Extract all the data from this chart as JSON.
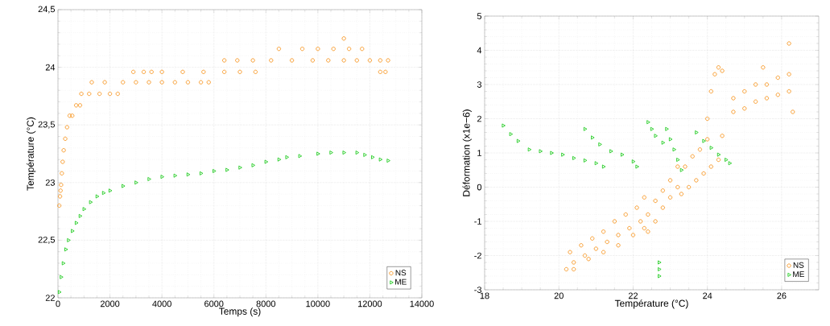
{
  "chart_data": [
    {
      "type": "scatter",
      "xlabel": "Temps (s)",
      "ylabel": "Température (°C)",
      "xlim": [
        0,
        14000
      ],
      "ylim": [
        22,
        24.5
      ],
      "xticks": [
        0,
        2000,
        4000,
        6000,
        8000,
        10000,
        12000,
        14000
      ],
      "yticks": [
        22,
        {
          "value": 22.5,
          "label": "22,5"
        },
        23,
        {
          "value": 23.5,
          "label": "23,5"
        },
        24,
        {
          "value": 24.5,
          "label": "24,5"
        }
      ],
      "grid": true,
      "legend": "bottom right",
      "series": [
        {
          "name": "NS",
          "color": "#f7941d",
          "marker": "circle",
          "x": [
            50,
            80,
            100,
            120,
            150,
            180,
            220,
            280,
            350,
            450,
            550,
            700,
            850,
            900,
            1200,
            1600,
            2000,
            2300,
            1300,
            1800,
            2500,
            3000,
            3500,
            4000,
            4500,
            5000,
            5500,
            5800,
            2900,
            3300,
            3600,
            4000,
            4800,
            5600,
            6400,
            7000,
            7600,
            6400,
            6900,
            7500,
            8200,
            9000,
            9800,
            10400,
            11000,
            11500,
            12000,
            12400,
            12700,
            8500,
            9400,
            10000,
            10600,
            11200,
            11700,
            11000,
            12400,
            12600
          ],
          "values": [
            22.8,
            22.88,
            22.93,
            22.98,
            23.08,
            23.18,
            23.28,
            23.38,
            23.48,
            23.58,
            23.58,
            23.67,
            23.67,
            23.77,
            23.77,
            23.77,
            23.77,
            23.77,
            23.87,
            23.87,
            23.87,
            23.87,
            23.87,
            23.87,
            23.87,
            23.87,
            23.87,
            23.87,
            23.96,
            23.96,
            23.96,
            23.96,
            23.96,
            23.96,
            23.96,
            23.96,
            23.96,
            24.06,
            24.06,
            24.06,
            24.06,
            24.06,
            24.06,
            24.06,
            24.06,
            24.06,
            24.06,
            24.06,
            24.06,
            24.16,
            24.16,
            24.16,
            24.16,
            24.16,
            24.16,
            24.25,
            23.96,
            23.96
          ]
        },
        {
          "name": "ME",
          "color": "#22cc22",
          "marker": "triangle",
          "x": [
            50,
            120,
            200,
            300,
            400,
            550,
            700,
            850,
            1000,
            1250,
            1500,
            1750,
            2000,
            2500,
            3000,
            3500,
            4000,
            4500,
            5000,
            5500,
            6000,
            6500,
            7000,
            7500,
            8000,
            8500,
            8800,
            9300,
            10000,
            10500,
            11000,
            11500,
            11800,
            12100,
            12400,
            12700
          ],
          "values": [
            22.05,
            22.18,
            22.3,
            22.42,
            22.5,
            22.58,
            22.65,
            22.71,
            22.77,
            22.83,
            22.88,
            22.91,
            22.93,
            22.97,
            23.0,
            23.03,
            23.05,
            23.06,
            23.07,
            23.08,
            23.1,
            23.11,
            23.13,
            23.15,
            23.18,
            23.2,
            23.22,
            23.23,
            23.25,
            23.26,
            23.26,
            23.26,
            23.24,
            23.22,
            23.2,
            23.19
          ]
        }
      ]
    },
    {
      "type": "scatter",
      "xlabel": "Température (°C)",
      "ylabel": "Déformation (x1e−6)",
      "xlim": [
        18,
        27
      ],
      "ylim": [
        -3,
        5
      ],
      "xticks": [
        18,
        20,
        22,
        24,
        26
      ],
      "yticks": [
        -3,
        -2,
        -1,
        0,
        1,
        2,
        3,
        4,
        5
      ],
      "grid": true,
      "legend": "bottom right",
      "series": [
        {
          "name": "NS",
          "color": "#f7941d",
          "marker": "circle",
          "x": [
            20.2,
            20.4,
            20.7,
            21.0,
            21.3,
            21.6,
            21.9,
            22.2,
            20.3,
            20.6,
            20.9,
            21.2,
            21.5,
            21.8,
            22.1,
            22.3,
            20.4,
            20.8,
            21.2,
            21.6,
            22.0,
            22.3,
            22.4,
            22.6,
            22.8,
            23.0,
            23.2,
            22.4,
            22.6,
            22.8,
            23.0,
            23.2,
            23.3,
            23.5,
            23.7,
            23.9,
            24.1,
            23.4,
            23.6,
            23.8,
            24.0,
            24.0,
            24.1,
            24.2,
            24.3,
            24.4,
            24.4,
            24.3,
            24.7,
            25.0,
            25.3,
            25.6,
            25.9,
            26.2,
            24.7,
            25.0,
            25.3,
            25.6,
            25.9,
            26.2,
            25.5,
            26.2,
            26.3
          ],
          "values": [
            -2.4,
            -2.2,
            -2.0,
            -1.8,
            -1.6,
            -1.4,
            -1.2,
            -1.0,
            -1.9,
            -1.7,
            -1.5,
            -1.3,
            -1.0,
            -0.8,
            -0.6,
            -0.3,
            -2.4,
            -2.1,
            -1.9,
            -1.7,
            -1.4,
            -1.2,
            -1.3,
            -1.0,
            -0.6,
            -0.3,
            0.0,
            -0.8,
            -0.4,
            -0.1,
            0.2,
            0.6,
            -0.2,
            0.0,
            0.2,
            0.4,
            0.6,
            0.6,
            0.9,
            1.1,
            1.4,
            2.0,
            2.8,
            3.3,
            3.5,
            3.4,
            1.5,
            0.8,
            2.2,
            2.3,
            2.5,
            2.6,
            2.7,
            2.8,
            2.6,
            2.8,
            3.0,
            3.0,
            3.2,
            3.3,
            3.5,
            4.2,
            2.2
          ]
        },
        {
          "name": "ME",
          "color": "#22cc22",
          "marker": "triangle",
          "x": [
            18.5,
            18.7,
            18.9,
            19.2,
            19.5,
            19.8,
            20.1,
            20.4,
            20.7,
            21.0,
            21.2,
            20.7,
            20.9,
            21.1,
            21.4,
            21.7,
            22.0,
            22.1,
            22.4,
            22.5,
            22.6,
            22.8,
            22.9,
            23.0,
            23.1,
            23.2,
            23.3,
            23.7,
            23.9,
            24.1,
            24.3,
            24.5,
            24.6,
            22.7,
            22.7,
            22.7
          ],
          "values": [
            1.8,
            1.55,
            1.35,
            1.1,
            1.05,
            1.0,
            0.95,
            0.85,
            0.78,
            0.7,
            0.6,
            1.7,
            1.45,
            1.25,
            1.05,
            0.95,
            0.75,
            0.6,
            1.9,
            1.7,
            1.5,
            1.3,
            1.7,
            1.4,
            1.1,
            0.8,
            0.5,
            1.6,
            1.35,
            1.15,
            0.95,
            0.8,
            0.7,
            -2.2,
            -2.4,
            -2.6
          ]
        }
      ]
    }
  ]
}
